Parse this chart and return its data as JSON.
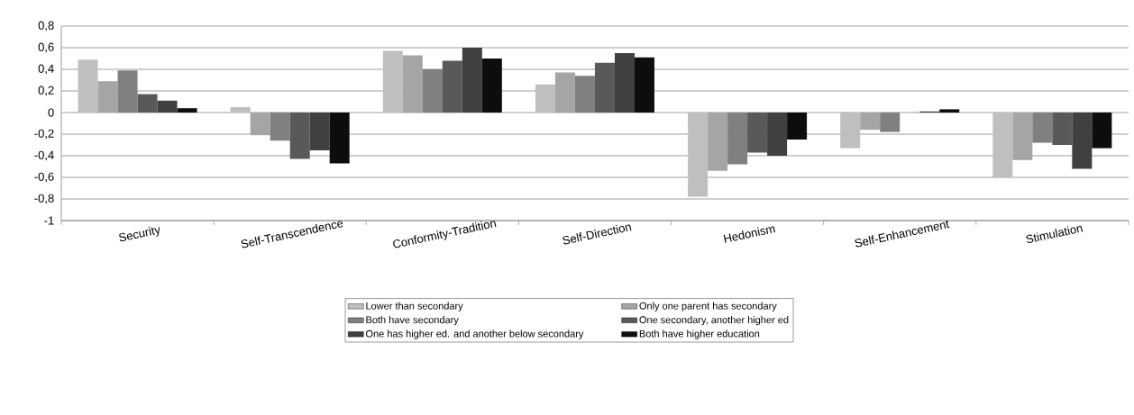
{
  "chart_data": {
    "type": "bar",
    "categories": [
      "Security",
      "Self-Transcendence",
      "Conformity-Tradition",
      "Self-Direction",
      "Hedonism",
      "Self-Enhancement",
      "Stimulation"
    ],
    "series": [
      {
        "name": "Lower than secondary",
        "color": "#bfbfbf",
        "values": [
          0.49,
          0.05,
          0.57,
          0.26,
          -0.78,
          -0.33,
          -0.6
        ]
      },
      {
        "name": "Only one parent has secondary",
        "color": "#a5a5a5",
        "values": [
          0.29,
          -0.21,
          0.53,
          0.37,
          -0.54,
          -0.16,
          -0.44
        ]
      },
      {
        "name": "Both have secondary",
        "color": "#808080",
        "values": [
          0.39,
          -0.26,
          0.4,
          0.34,
          -0.48,
          -0.18,
          -0.28
        ]
      },
      {
        "name": "One secondary, another higher ed",
        "color": "#595959",
        "values": [
          0.17,
          -0.43,
          0.48,
          0.46,
          -0.37,
          0,
          -0.3
        ]
      },
      {
        "name": "One has higher ed. and another below secondary",
        "color": "#404040",
        "values": [
          0.11,
          -0.35,
          0.6,
          0.55,
          -0.4,
          0.01,
          -0.52
        ]
      },
      {
        "name": "Both have higher education",
        "color": "#0d0d0d",
        "values": [
          0.04,
          -0.47,
          0.5,
          0.51,
          -0.25,
          0.03,
          -0.33
        ]
      }
    ],
    "ylim": [
      -1,
      0.8
    ],
    "yticks": [
      -1,
      {
        "value": -0.8,
        "label": "-0,8"
      },
      {
        "value": -0.6,
        "label": "-0,6"
      },
      {
        "value": -0.4,
        "label": "-0,4"
      },
      {
        "value": -0.2,
        "label": "-0,2"
      },
      0,
      {
        "value": 0.2,
        "label": "0,2"
      },
      {
        "value": 0.4,
        "label": "0,4"
      },
      {
        "value": 0.6,
        "label": "0,6"
      },
      {
        "value": 0.8,
        "label": "0,8"
      }
    ],
    "grid": "y",
    "legend": "bottom"
  }
}
